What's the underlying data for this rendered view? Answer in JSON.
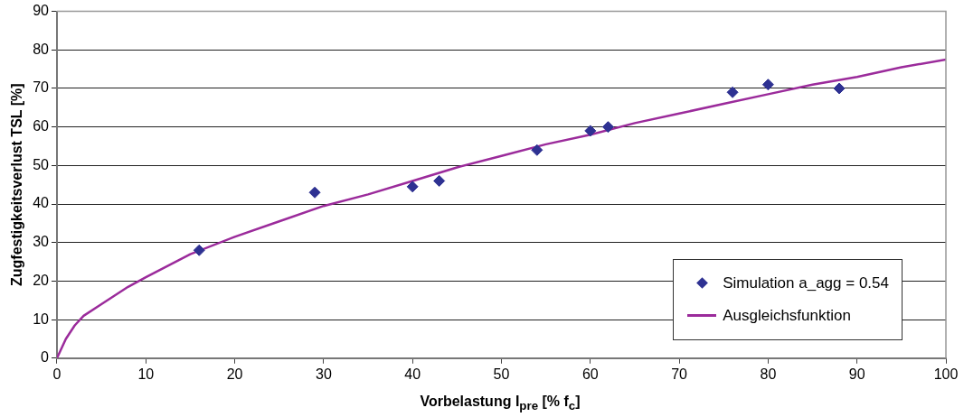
{
  "chart_data": {
    "type": "scatter",
    "xlabel": "Vorbelastung I$_{pre}$ [% f$_{c}$]",
    "ylabel": "Zugfestigkeitsverlust TSL [%]",
    "xlim": [
      0,
      100
    ],
    "xticks": [
      0,
      10,
      20,
      30,
      40,
      50,
      60,
      70,
      80,
      90,
      100
    ],
    "ylim": [
      0,
      90
    ],
    "yticks": [
      0,
      10,
      20,
      30,
      40,
      50,
      60,
      70,
      80,
      90
    ],
    "grid": "y",
    "legend": "bottom right",
    "marker": "diamond",
    "series": [
      {
        "name": "Simulation a_agg = 0.54",
        "type": "scatter",
        "color": "#2e3192",
        "x": [
          16,
          29,
          40,
          43,
          54,
          60,
          62,
          76,
          80,
          88
        ],
        "values": [
          28,
          43,
          44.5,
          46,
          54,
          59,
          60,
          69,
          71,
          70
        ]
      },
      {
        "name": "Ausgleichsfunktion",
        "type": "line",
        "marker": "none",
        "line_style": "solid",
        "color": "#9b2b9b",
        "x": [
          0,
          1,
          2,
          3,
          5,
          8,
          10,
          15,
          20,
          25,
          30,
          35,
          40,
          45,
          50,
          55,
          60,
          65,
          70,
          75,
          80,
          85,
          90,
          95,
          100
        ],
        "values": [
          0,
          5,
          8.5,
          11,
          14,
          18.5,
          21,
          27,
          31.5,
          35.5,
          39.5,
          42.5,
          46,
          49.5,
          52.5,
          55.5,
          58,
          61,
          63.5,
          66,
          68.5,
          71,
          73,
          75.5,
          77.5
        ]
      }
    ]
  }
}
